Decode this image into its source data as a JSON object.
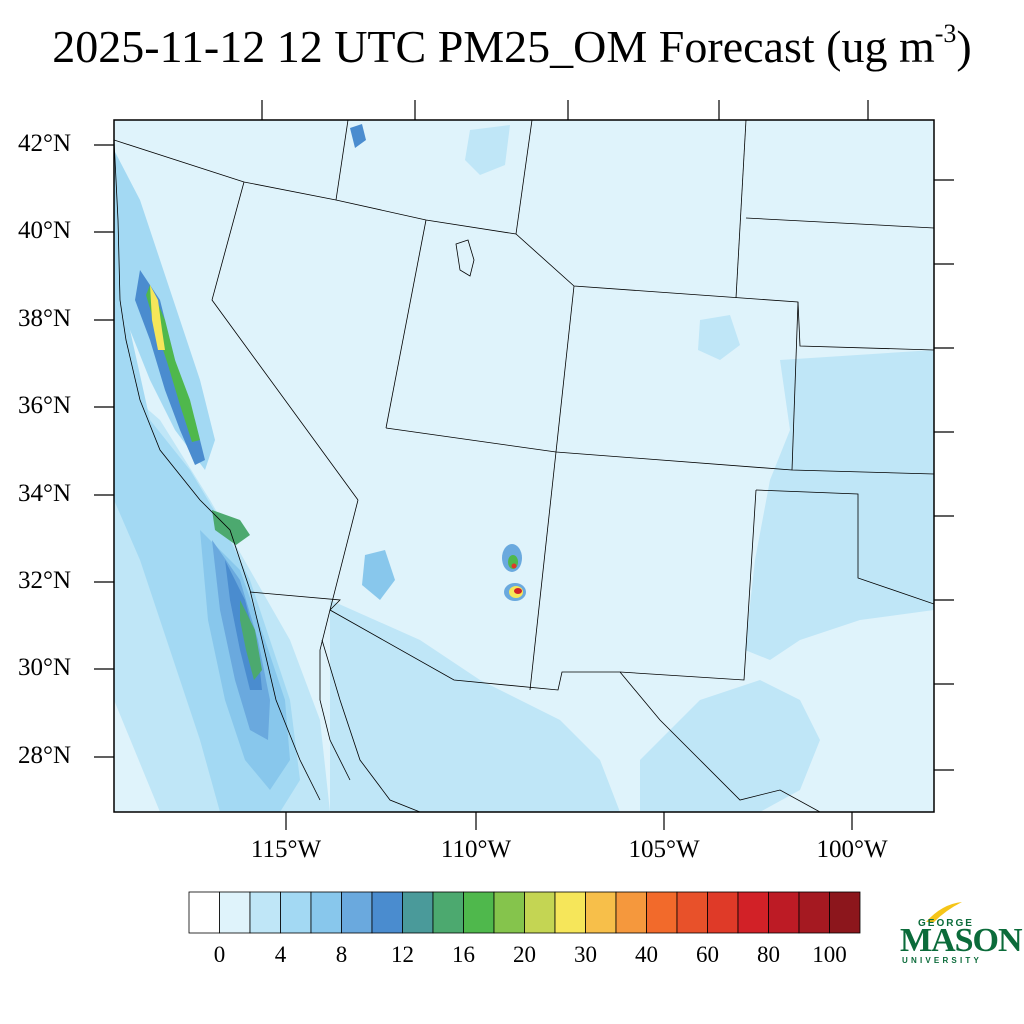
{
  "title": {
    "main": "2025-11-12 12 UTC PM25_OM Forecast (ug m",
    "superscript": "-3",
    "close": ")"
  },
  "map": {
    "lat_labels": [
      "42°N",
      "40°N",
      "38°N",
      "36°N",
      "34°N",
      "32°N",
      "30°N",
      "28°N"
    ],
    "lon_labels": [
      "115°W",
      "110°W",
      "105°W",
      "100°W"
    ],
    "background_color": "#dff3fb"
  },
  "colorbar": {
    "colors": [
      "#ffffff",
      "#dff3fb",
      "#bfe6f7",
      "#a3d9f3",
      "#88c7ec",
      "#6aa9de",
      "#4a8ccf",
      "#4a9a9a",
      "#4ca96f",
      "#4fb84c",
      "#85c44c",
      "#c4d553",
      "#f6e65a",
      "#f7bf4a",
      "#f5983d",
      "#f26a2b",
      "#e8512a",
      "#df3a28",
      "#d22127",
      "#bd1b25",
      "#a51921",
      "#8c161c"
    ],
    "tick_labels": [
      "0",
      "4",
      "8",
      "12",
      "16",
      "20",
      "30",
      "40",
      "60",
      "80",
      "100"
    ]
  },
  "logo": {
    "line1": "GEORGE",
    "line2": "MASON",
    "line3": "UNIVERSITY",
    "color": "#0b6b3a",
    "accent": "#f5c518"
  }
}
